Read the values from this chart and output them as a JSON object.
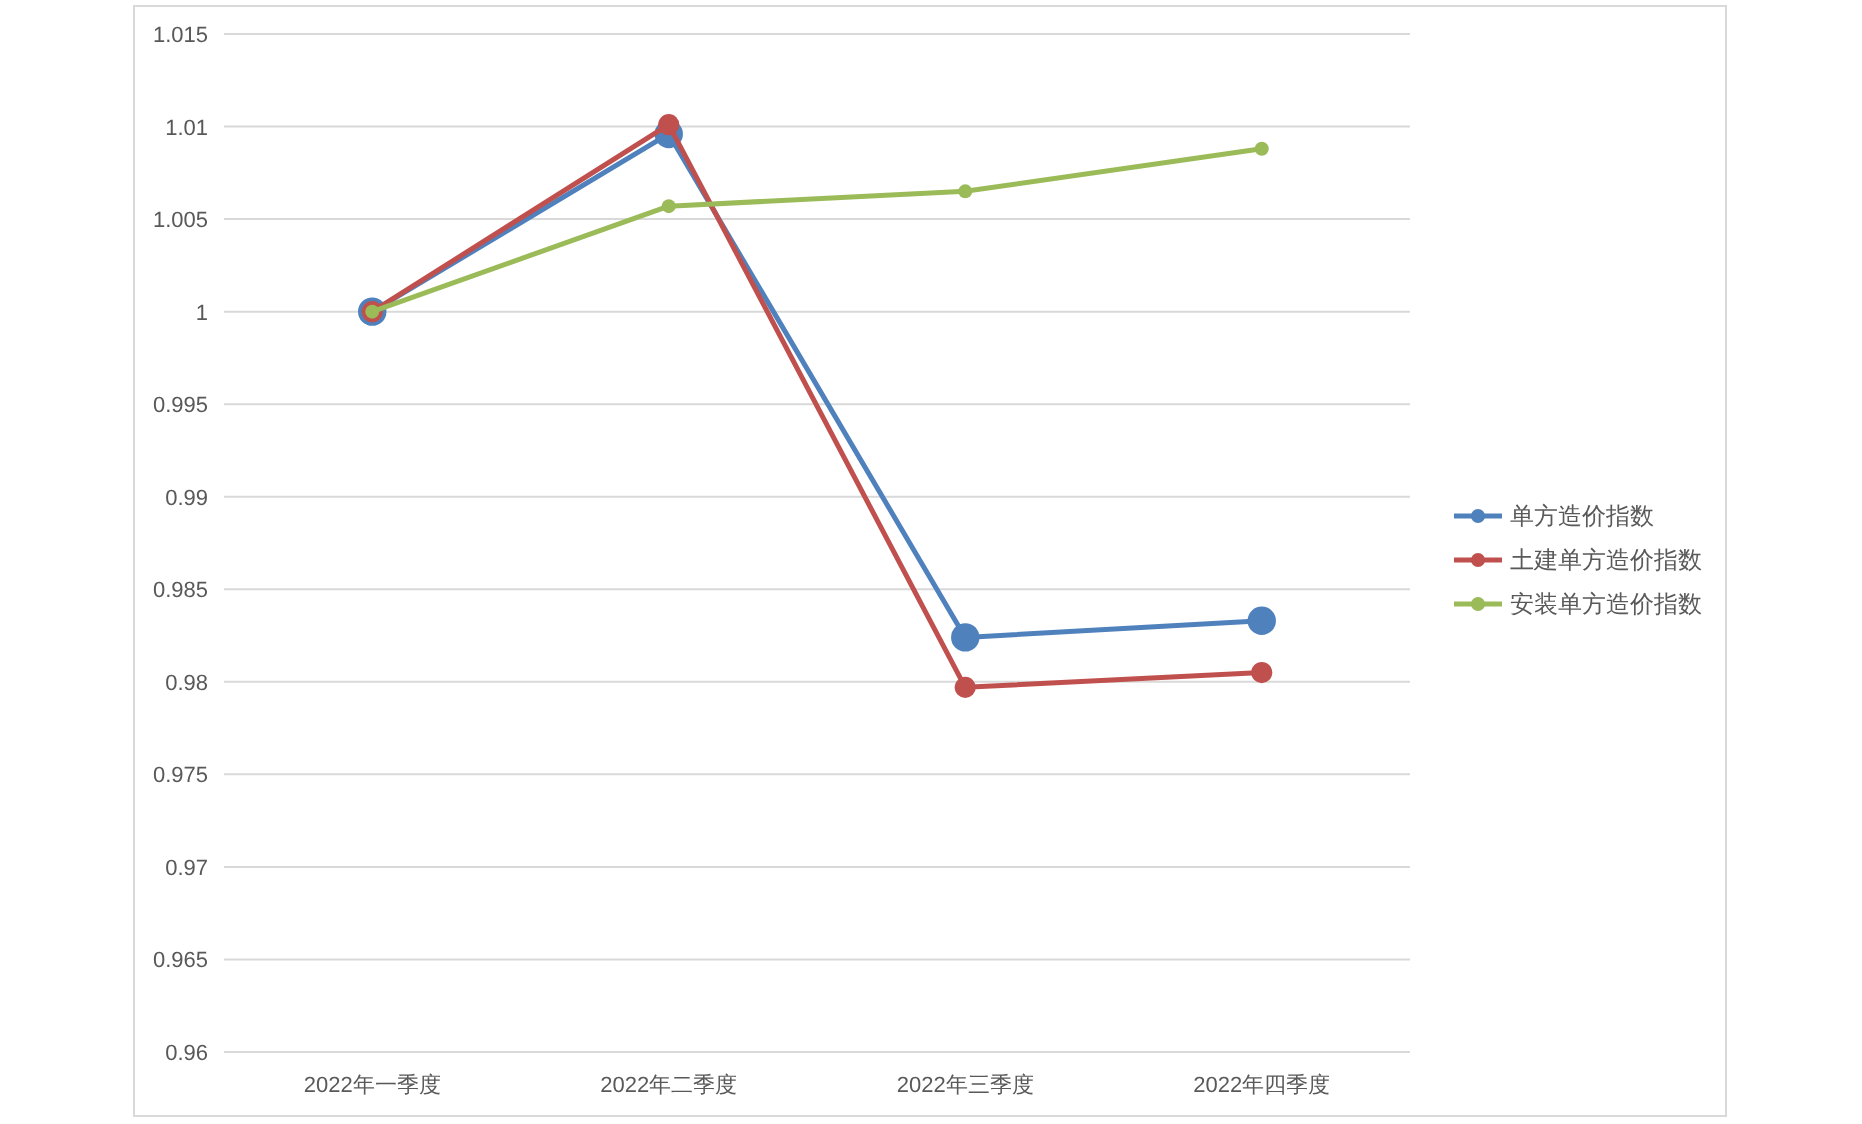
{
  "chart_data": {
    "type": "line",
    "categories": [
      "2022年一季度",
      "2022年二季度",
      "2022年三季度",
      "2022年四季度"
    ],
    "series": [
      {
        "name": "单方造价指数",
        "color": "#4f81bd",
        "values": [
          1.0,
          1.0096,
          0.9824,
          0.9833
        ]
      },
      {
        "name": "土建单方造价指数",
        "color": "#c0504d",
        "values": [
          1.0,
          1.0101,
          0.9797,
          0.9805
        ]
      },
      {
        "name": "安装单方造价指数",
        "color": "#9bbb59",
        "values": [
          1.0,
          1.0057,
          1.0065,
          1.0088
        ]
      }
    ],
    "ylim": [
      0.96,
      1.015
    ],
    "yticks": [
      0.96,
      0.965,
      0.97,
      0.975,
      0.98,
      0.985,
      0.99,
      0.995,
      1,
      1.005,
      1.01,
      1.015
    ],
    "grid": "y",
    "legend": "right",
    "marker": "circle",
    "line_style": "solid"
  }
}
